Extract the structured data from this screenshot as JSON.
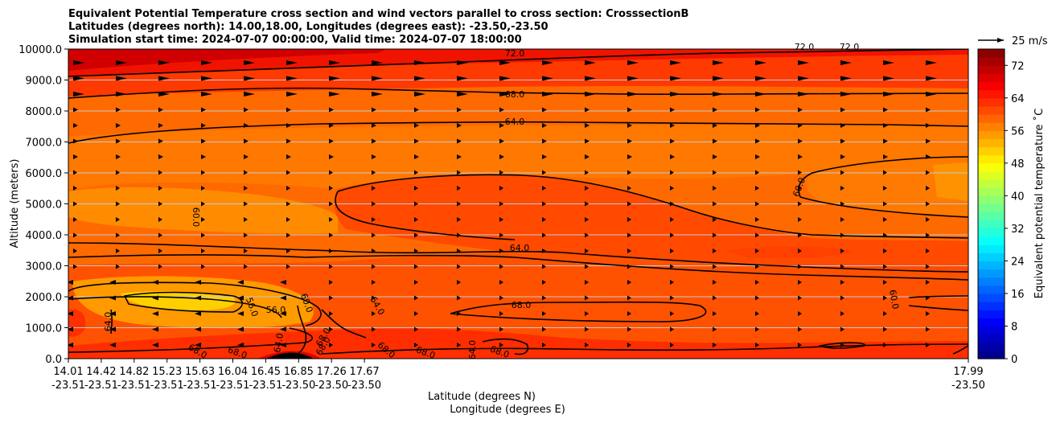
{
  "chart_data": {
    "type": "heatmap",
    "title_lines": [
      "Equivalent Potential Temperature cross section and wind vectors parallel to cross section: CrosssectionB",
      "Latitudes (degrees north): 14.00,18.00, Longitudes (degrees east): -23.50,-23.50",
      "Simulation start time: 2024-07-07 00:00:00, Valid time: 2024-07-07 18:00:00"
    ],
    "xlabel_lines": [
      "Latitude (degrees N)",
      "Longitude (degrees E)"
    ],
    "ylabel": "Altitude (meters)",
    "colorbar_label": "Equivalent potential temperature ˚C",
    "ylim": [
      0,
      10000
    ],
    "yticks": [
      "0.0",
      "1000.0",
      "2000.0",
      "3000.0",
      "4000.0",
      "5000.0",
      "6000.0",
      "7000.0",
      "8000.0",
      "9000.0",
      "10000.0"
    ],
    "xticks": [
      {
        "lat": "14.01",
        "lon": "-23.51"
      },
      {
        "lat": "14.42",
        "lon": "-23.51"
      },
      {
        "lat": "14.82",
        "lon": "-23.51"
      },
      {
        "lat": "15.23",
        "lon": "-23.51"
      },
      {
        "lat": "15.63",
        "lon": "-23.51"
      },
      {
        "lat": "16.04",
        "lon": "-23.51"
      },
      {
        "lat": "16.45",
        "lon": "-23.51"
      },
      {
        "lat": "16.85",
        "lon": "-23.50"
      },
      {
        "lat": "17.26",
        "lon": "-23.50"
      },
      {
        "lat": "17.67",
        "lon": "-23.50"
      },
      {
        "lat": "17.99",
        "lon": "-23.50"
      }
    ],
    "colorbar_ticks": [
      "0",
      "8",
      "16",
      "24",
      "32",
      "40",
      "48",
      "56",
      "64",
      "72"
    ],
    "colorbar_range": [
      0,
      76
    ],
    "contour_labels": [
      "72.0",
      "68.0",
      "64.0",
      "60.0",
      "56.0",
      "64.0",
      "68.0",
      "60.0",
      "60.0",
      "56.0",
      "60.0",
      "64.0",
      "68.0",
      "68.0",
      "68.0",
      "68.0",
      "68.0",
      "64.0",
      "68.0",
      "72.0",
      "72.0",
      "64.0",
      "64.0",
      "68.0"
    ],
    "quiver_key": "25 m/s",
    "wind_speed_ms_east": 12
  }
}
